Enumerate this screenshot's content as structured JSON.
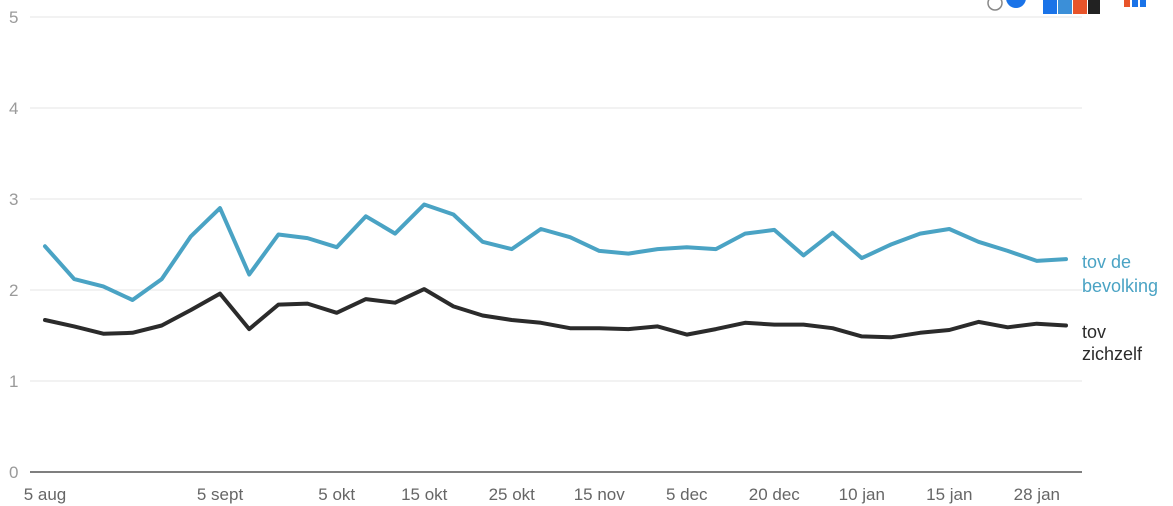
{
  "chart_data": {
    "type": "line",
    "title": "",
    "xlabel": "",
    "ylabel": "",
    "ylim": [
      0,
      5
    ],
    "yticks": [
      0,
      1,
      2,
      3,
      4,
      5
    ],
    "grid": true,
    "x_ticks": [
      {
        "label": "5 aug",
        "week": 0
      },
      {
        "label": "5 sept",
        "week": 6
      },
      {
        "label": "5 okt",
        "week": 10
      },
      {
        "label": "15 okt",
        "week": 13
      },
      {
        "label": "25 okt",
        "week": 16
      },
      {
        "label": "15 nov",
        "week": 19
      },
      {
        "label": "5 dec",
        "week": 22
      },
      {
        "label": "20 dec",
        "week": 25
      },
      {
        "label": "10 jan",
        "week": 28
      },
      {
        "label": "15 jan",
        "week": 31
      },
      {
        "label": "28 jan",
        "week": 34
      }
    ],
    "series": [
      {
        "name": "tov de bevolking",
        "label_lines": [
          "tov de",
          "bevolking"
        ],
        "color": "#4aa3c4",
        "values": [
          2.48,
          2.12,
          2.04,
          1.89,
          2.12,
          2.59,
          2.9,
          2.17,
          2.61,
          2.57,
          2.47,
          2.81,
          2.62,
          2.94,
          2.83,
          2.53,
          2.45,
          2.67,
          2.58,
          2.43,
          2.4,
          2.45,
          2.47,
          2.45,
          2.62,
          2.66,
          2.38,
          2.63,
          2.35,
          2.5,
          2.62,
          2.67,
          2.53,
          2.43,
          2.32,
          2.34
        ]
      },
      {
        "name": "tov zichzelf",
        "label_lines": [
          "tov",
          "zichzelf"
        ],
        "color": "#2b2b2b",
        "values": [
          1.67,
          1.6,
          1.52,
          1.53,
          1.61,
          1.78,
          1.96,
          1.57,
          1.84,
          1.85,
          1.75,
          1.9,
          1.86,
          2.01,
          1.82,
          1.72,
          1.67,
          1.64,
          1.58,
          1.58,
          1.57,
          1.6,
          1.51,
          1.57,
          1.64,
          1.62,
          1.62,
          1.58,
          1.49,
          1.48,
          1.53,
          1.56,
          1.65,
          1.59,
          1.63,
          1.61
        ]
      }
    ]
  }
}
